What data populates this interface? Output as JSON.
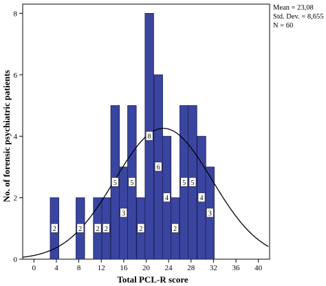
{
  "chart_data": {
    "type": "bar",
    "subtype": "histogram with normal curve",
    "xlabel": "Total PCL-R score",
    "ylabel": "No. of forensic psychiatric patients",
    "xlim": [
      -2,
      42
    ],
    "ylim": [
      0,
      8.3
    ],
    "x_ticks": [
      "0",
      "4",
      "8",
      "12",
      "16",
      "20",
      "24",
      "28",
      "32",
      "36",
      "40"
    ],
    "y_ticks": [
      "0",
      "2",
      "4",
      "6",
      "8"
    ],
    "bin_width": 1.54,
    "bins": [
      {
        "x_start": 2.9,
        "count": 2,
        "label": "2"
      },
      {
        "x_start": 7.5,
        "count": 2,
        "label": "2"
      },
      {
        "x_start": 10.6,
        "count": 2,
        "label": "2"
      },
      {
        "x_start": 12.1,
        "count": 2,
        "label": "2"
      },
      {
        "x_start": 13.7,
        "count": 5,
        "label": "5"
      },
      {
        "x_start": 15.2,
        "count": 3,
        "label": "3"
      },
      {
        "x_start": 16.7,
        "count": 5,
        "label": "5"
      },
      {
        "x_start": 18.3,
        "count": 2,
        "label": "2"
      },
      {
        "x_start": 19.8,
        "count": 8,
        "label": "8"
      },
      {
        "x_start": 21.4,
        "count": 6,
        "label": "6"
      },
      {
        "x_start": 22.9,
        "count": 4,
        "label": "4"
      },
      {
        "x_start": 24.4,
        "count": 2,
        "label": "2"
      },
      {
        "x_start": 26.0,
        "count": 5,
        "label": "5"
      },
      {
        "x_start": 27.5,
        "count": 5,
        "label": "5"
      },
      {
        "x_start": 29.1,
        "count": 4,
        "label": "4"
      },
      {
        "x_start": 30.6,
        "count": 3,
        "label": "3"
      }
    ],
    "normal_curve": {
      "mean": 23.08,
      "std": 8.655,
      "n": 60
    },
    "stats": {
      "mean": "Mean = 23,08",
      "std": "Std. Dev. = 8,655",
      "n": "N = 60"
    },
    "grid": false,
    "legend": "none"
  }
}
